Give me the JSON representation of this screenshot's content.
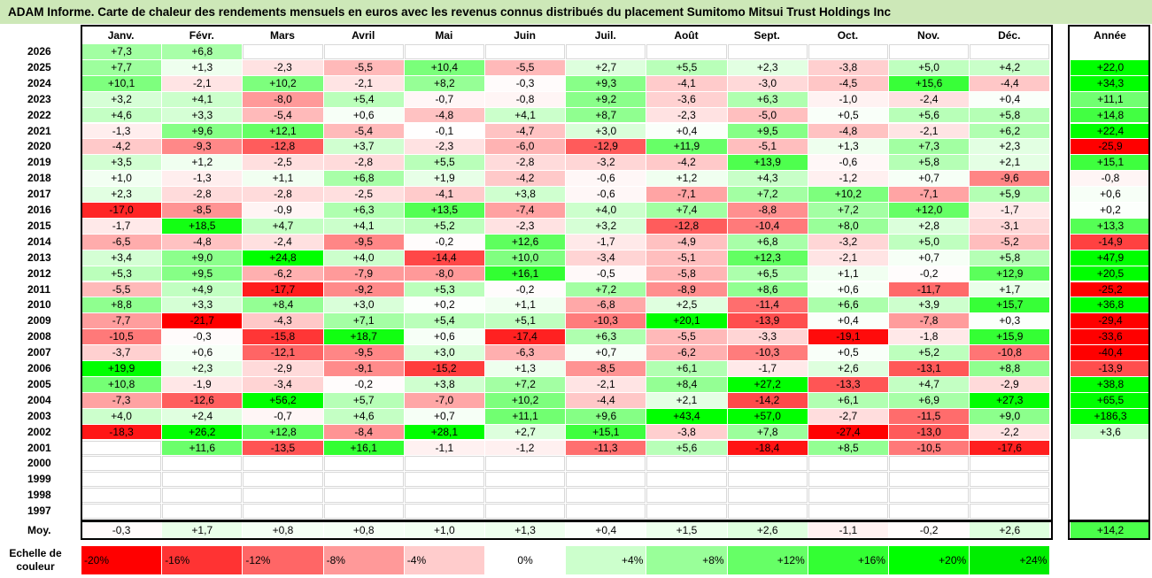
{
  "title": "ADAM Informe. Carte de chaleur des rendements mensuels en euros avec les revenus connus distribués du placement Sumitomo Mitsui Trust Holdings Inc",
  "chart_data": {
    "type": "heatmap",
    "title": "ADAM Informe. Carte de chaleur des rendements mensuels en euros avec les revenus connus distribués du placement Sumitomo Mitsui Trust Holdings Inc",
    "columns": [
      "Janv.",
      "Févr.",
      "Mars",
      "Avril",
      "Mai",
      "Juin",
      "Juil.",
      "Août",
      "Sept.",
      "Oct.",
      "Nov.",
      "Déc."
    ],
    "year_header": "Année",
    "rows": [
      {
        "year": "2026",
        "months": [
          "+7,3",
          "+6,8",
          "",
          "",
          "",
          "",
          "",
          "",
          "",
          "",
          "",
          ""
        ],
        "annual": ""
      },
      {
        "year": "2025",
        "months": [
          "+7,7",
          "+1,3",
          "-2,3",
          "-5,5",
          "+10,4",
          "-5,5",
          "+2,7",
          "+5,5",
          "+2,3",
          "-3,8",
          "+5,0",
          "+4,2"
        ],
        "annual": "+22,0"
      },
      {
        "year": "2024",
        "months": [
          "+10,1",
          "-2,1",
          "+10,2",
          "-2,1",
          "+8,2",
          "-0,3",
          "+9,3",
          "-4,1",
          "-3,0",
          "-4,5",
          "+15,6",
          "-4,4"
        ],
        "annual": "+34,3"
      },
      {
        "year": "2023",
        "months": [
          "+3,2",
          "+4,1",
          "-8,0",
          "+5,4",
          "-0,7",
          "-0,8",
          "+9,2",
          "-3,6",
          "+6,3",
          "-1,0",
          "-2,4",
          "+0,4"
        ],
        "annual": "+11,1"
      },
      {
        "year": "2022",
        "months": [
          "+4,6",
          "+3,3",
          "-5,4",
          "+0,6",
          "-4,8",
          "+4,1",
          "+8,7",
          "-2,3",
          "-5,0",
          "+0,5",
          "+5,6",
          "+5,8"
        ],
        "annual": "+14,8"
      },
      {
        "year": "2021",
        "months": [
          "-1,3",
          "+9,6",
          "+12,1",
          "-5,4",
          "-0,1",
          "-4,7",
          "+3,0",
          "+0,4",
          "+9,5",
          "-4,8",
          "-2,1",
          "+6,2"
        ],
        "annual": "+22,4"
      },
      {
        "year": "2020",
        "months": [
          "-4,2",
          "-9,3",
          "-12,8",
          "+3,7",
          "-2,3",
          "-6,0",
          "-12,9",
          "+11,9",
          "-5,1",
          "+1,3",
          "+7,3",
          "+2,3"
        ],
        "annual": "-25,9"
      },
      {
        "year": "2019",
        "months": [
          "+3,5",
          "+1,2",
          "-2,5",
          "-2,8",
          "+5,5",
          "-2,8",
          "-3,2",
          "-4,2",
          "+13,9",
          "-0,6",
          "+5,8",
          "+2,1"
        ],
        "annual": "+15,1"
      },
      {
        "year": "2018",
        "months": [
          "+1,0",
          "-1,3",
          "+1,1",
          "+6,8",
          "+1,9",
          "-4,2",
          "-0,6",
          "+1,2",
          "+4,3",
          "-1,2",
          "+0,7",
          "-9,6"
        ],
        "annual": "-0,8"
      },
      {
        "year": "2017",
        "months": [
          "+2,3",
          "-2,8",
          "-2,8",
          "-2,5",
          "-4,1",
          "+3,8",
          "-0,6",
          "-7,1",
          "+7,2",
          "+10,2",
          "-7,1",
          "+5,9"
        ],
        "annual": "+0,6"
      },
      {
        "year": "2016",
        "months": [
          "-17,0",
          "-8,5",
          "-0,9",
          "+6,3",
          "+13,5",
          "-7,4",
          "+4,0",
          "+7,4",
          "-8,8",
          "+7,2",
          "+12,0",
          "-1,7"
        ],
        "annual": "+0,2"
      },
      {
        "year": "2015",
        "months": [
          "-1,7",
          "+18,5",
          "+4,7",
          "+4,1",
          "+5,2",
          "-2,3",
          "+3,2",
          "-12,8",
          "-10,4",
          "+8,0",
          "+2,8",
          "-3,1"
        ],
        "annual": "+13,3"
      },
      {
        "year": "2014",
        "months": [
          "-6,5",
          "-4,8",
          "-2,4",
          "-9,5",
          "-0,2",
          "+12,6",
          "-1,7",
          "-4,9",
          "+6,8",
          "-3,2",
          "+5,0",
          "-5,2"
        ],
        "annual": "-14,9"
      },
      {
        "year": "2013",
        "months": [
          "+3,4",
          "+9,0",
          "+24,8",
          "+4,0",
          "-14,4",
          "+10,0",
          "-3,4",
          "-5,1",
          "+12,3",
          "-2,1",
          "+0,7",
          "+5,8"
        ],
        "annual": "+47,9"
      },
      {
        "year": "2012",
        "months": [
          "+5,3",
          "+9,5",
          "-6,2",
          "-7,9",
          "-8,0",
          "+16,1",
          "-0,5",
          "-5,8",
          "+6,5",
          "+1,1",
          "-0,2",
          "+12,9"
        ],
        "annual": "+20,5"
      },
      {
        "year": "2011",
        "months": [
          "-5,5",
          "+4,9",
          "-17,7",
          "-9,2",
          "+5,3",
          "-0,2",
          "+7,2",
          "-8,9",
          "+8,6",
          "+0,6",
          "-11,7",
          "+1,7"
        ],
        "annual": "-25,2"
      },
      {
        "year": "2010",
        "months": [
          "+8,8",
          "+3,3",
          "+8,4",
          "+3,0",
          "+0,2",
          "+1,1",
          "-6,8",
          "+2,5",
          "-11,4",
          "+6,6",
          "+3,9",
          "+15,7"
        ],
        "annual": "+36,8"
      },
      {
        "year": "2009",
        "months": [
          "-7,7",
          "-21,7",
          "-4,3",
          "+7,1",
          "+5,4",
          "+5,1",
          "-10,3",
          "+20,1",
          "-13,9",
          "+0,4",
          "-7,8",
          "+0,3"
        ],
        "annual": "-29,4"
      },
      {
        "year": "2008",
        "months": [
          "-10,5",
          "-0,3",
          "-15,8",
          "+18,7",
          "+0,6",
          "-17,4",
          "+6,3",
          "-5,5",
          "-3,3",
          "-19,1",
          "-1,8",
          "+15,9"
        ],
        "annual": "-33,6"
      },
      {
        "year": "2007",
        "months": [
          "-3,7",
          "+0,6",
          "-12,1",
          "-9,5",
          "+3,0",
          "-6,3",
          "+0,7",
          "-6,2",
          "-10,3",
          "+0,5",
          "+5,2",
          "-10,8"
        ],
        "annual": "-40,4"
      },
      {
        "year": "2006",
        "months": [
          "+19,9",
          "+2,3",
          "-2,9",
          "-9,1",
          "-15,2",
          "+1,3",
          "-8,5",
          "+6,1",
          "-1,7",
          "+2,6",
          "-13,1",
          "+8,8"
        ],
        "annual": "-13,9"
      },
      {
        "year": "2005",
        "months": [
          "+10,8",
          "-1,9",
          "-3,4",
          "-0,2",
          "+3,8",
          "+7,2",
          "-2,1",
          "+8,4",
          "+27,2",
          "-13,3",
          "+4,7",
          "-2,9"
        ],
        "annual": "+38,8"
      },
      {
        "year": "2004",
        "months": [
          "-7,3",
          "-12,6",
          "+56,2",
          "+5,7",
          "-7,0",
          "+10,2",
          "-4,4",
          "+2,1",
          "-14,2",
          "+6,1",
          "+6,9",
          "+27,3"
        ],
        "annual": "+65,5"
      },
      {
        "year": "2003",
        "months": [
          "+4,0",
          "+2,4",
          "-0,7",
          "+4,6",
          "+0,7",
          "+11,1",
          "+9,6",
          "+43,4",
          "+57,0",
          "-2,7",
          "-11,5",
          "+9,0"
        ],
        "annual": "+186,3"
      },
      {
        "year": "2002",
        "months": [
          "-18,3",
          "+26,2",
          "+12,8",
          "-8,4",
          "+28,1",
          "+2,7",
          "+15,1",
          "-3,8",
          "+7,8",
          "-27,4",
          "-13,0",
          "-2,2"
        ],
        "annual": "+3,6"
      },
      {
        "year": "2001",
        "months": [
          "",
          "+11,6",
          "-13,5",
          "+16,1",
          "-1,1",
          "-1,2",
          "-11,3",
          "+5,6",
          "-18,4",
          "+8,5",
          "-10,5",
          "-17,6"
        ],
        "annual": ""
      },
      {
        "year": "2000",
        "months": [
          "",
          "",
          "",
          "",
          "",
          "",
          "",
          "",
          "",
          "",
          "",
          ""
        ],
        "annual": ""
      },
      {
        "year": "1999",
        "months": [
          "",
          "",
          "",
          "",
          "",
          "",
          "",
          "",
          "",
          "",
          "",
          ""
        ],
        "annual": ""
      },
      {
        "year": "1998",
        "months": [
          "",
          "",
          "",
          "",
          "",
          "",
          "",
          "",
          "",
          "",
          "",
          ""
        ],
        "annual": ""
      },
      {
        "year": "1997",
        "months": [
          "",
          "",
          "",
          "",
          "",
          "",
          "",
          "",
          "",
          "",
          "",
          ""
        ],
        "annual": ""
      }
    ],
    "average": {
      "label": "Moy.",
      "months": [
        "-0,3",
        "+1,7",
        "+0,8",
        "+0,8",
        "+1,0",
        "+1,3",
        "+0,4",
        "+1,5",
        "+2,6",
        "-1,1",
        "-0,2",
        "+2,6"
      ],
      "annual": "+14,2"
    },
    "scale": {
      "label": "Echelle de couleur",
      "steps": [
        {
          "label": "-20%",
          "value": -20,
          "color": "#ff0000"
        },
        {
          "label": "-16%",
          "value": -16,
          "color": "#ff3333"
        },
        {
          "label": "-12%",
          "value": -12,
          "color": "#ff6666"
        },
        {
          "label": "-8%",
          "value": -8,
          "color": "#ff9999"
        },
        {
          "label": "-4%",
          "value": -4,
          "color": "#ffcccc"
        },
        {
          "label": "0%",
          "value": 0,
          "color": "#ffffff"
        },
        {
          "label": "+4%",
          "value": 4,
          "color": "#ccffcc"
        },
        {
          "label": "+8%",
          "value": 8,
          "color": "#99ff99"
        },
        {
          "label": "+12%",
          "value": 12,
          "color": "#66ff66"
        },
        {
          "label": "+16%",
          "value": 16,
          "color": "#33ff33"
        },
        {
          "label": "+20%",
          "value": 20,
          "color": "#00ff00"
        },
        {
          "label": "+24%",
          "value": 24,
          "color": "#00ee00"
        }
      ]
    }
  }
}
